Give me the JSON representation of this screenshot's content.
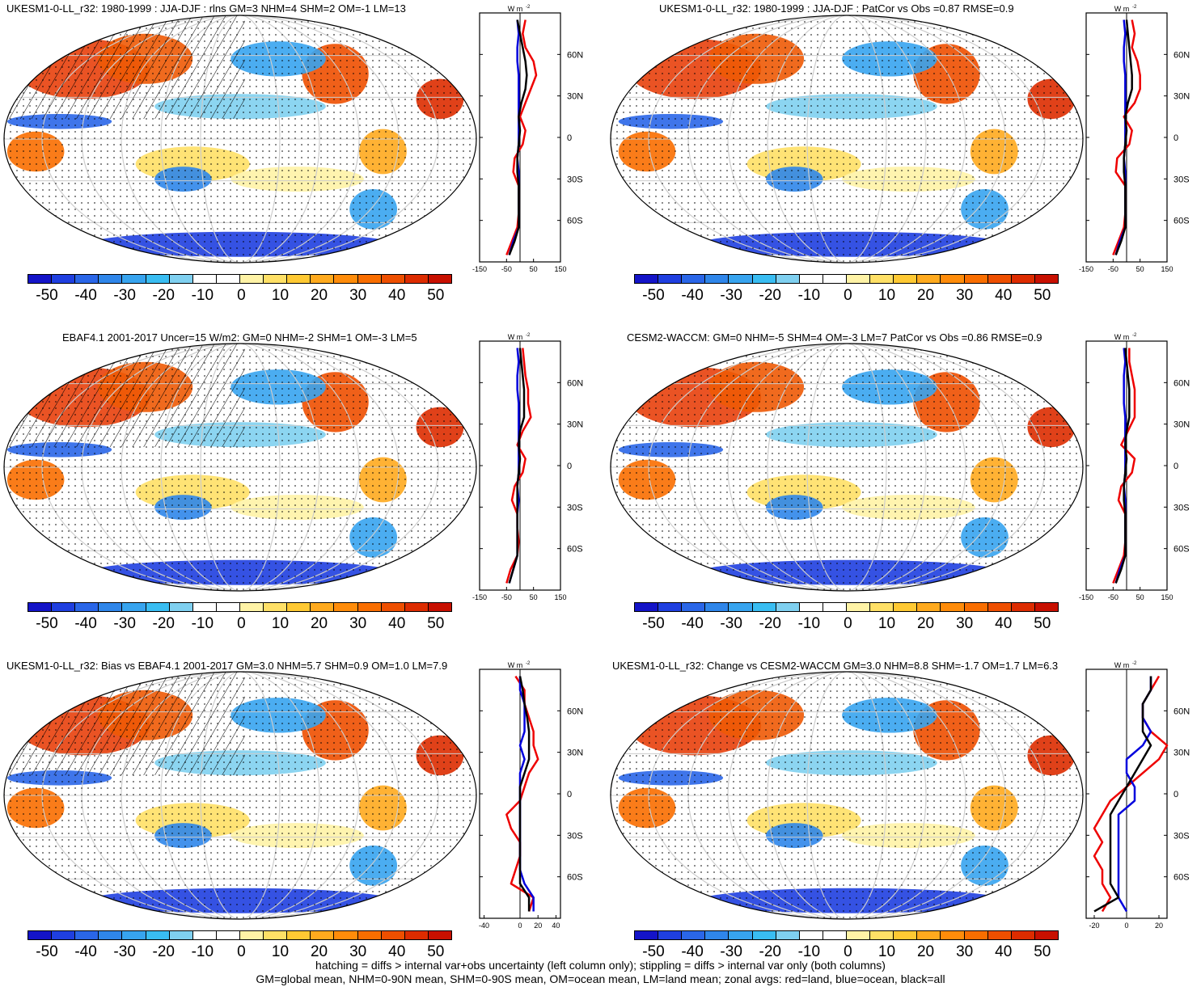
{
  "colors": {
    "land": "#ee0000",
    "ocean": "#0000dd",
    "all": "#000000",
    "colorbar": [
      "#1414c8",
      "#1f3fe0",
      "#2a66e8",
      "#2f86ea",
      "#37a4ef",
      "#39bdf2",
      "#7fd0f0",
      "#ffffff",
      "#ffffff",
      "#fff3a6",
      "#ffe066",
      "#ffc933",
      "#ffaa1e",
      "#ff8c0a",
      "#f96e00",
      "#ee4f00",
      "#dd2c00",
      "#c81000"
    ]
  },
  "colorbar": {
    "labels": [
      "-50",
      "-40",
      "-30",
      "-20",
      "-10",
      "0",
      "10",
      "20",
      "30",
      "40",
      "50"
    ]
  },
  "panels": [
    {
      "title": "UKESM1-0-LL_r32: 1980-1999 : JJA-DJF : rlns GM=3 NHM=4 SHM=2 OM=-1 LM=13",
      "hatched": true,
      "zonal": {
        "unit_label": "W m",
        "unit_exp": "-2",
        "xticks": [
          "-150",
          "-50",
          "50",
          "150"
        ],
        "yticks": [
          "60N",
          "30N",
          "0",
          "30S",
          "60S"
        ]
      }
    },
    {
      "title": "UKESM1-0-LL_r32: 1980-1999 : JJA-DJF : PatCor vs Obs =0.87 RMSE=0.9",
      "hatched": false,
      "zonal": {
        "unit_label": "W m",
        "unit_exp": "-2",
        "xticks": [
          "-150",
          "-50",
          "50",
          "150"
        ],
        "yticks": [
          "60N",
          "30N",
          "0",
          "30S",
          "60S"
        ]
      }
    },
    {
      "title": "EBAF4.1 2001-2017 Uncer=15 W/m2: GM=0 NHM=-2 SHM=1 OM=-3 LM=5",
      "hatched": true,
      "zonal": {
        "unit_label": "W m",
        "unit_exp": "-2",
        "xticks": [
          "-150",
          "-50",
          "50",
          "150"
        ],
        "yticks": [
          "60N",
          "30N",
          "0",
          "30S",
          "60S"
        ]
      }
    },
    {
      "title": "CESM2-WACCM: GM=0 NHM=-5 SHM=4 OM=-3 LM=7 PatCor vs Obs =0.86 RMSE=0.9",
      "hatched": false,
      "zonal": {
        "unit_label": "W m",
        "unit_exp": "-2",
        "xticks": [
          "-150",
          "-50",
          "50",
          "150"
        ],
        "yticks": [
          "60N",
          "30N",
          "0",
          "30S",
          "60S"
        ]
      }
    },
    {
      "title": "UKESM1-0-LL_r32: Bias vs EBAF4.1 2001-2017 GM=3.0 NHM=5.7 SHM=0.9 OM=1.0 LM=7.9",
      "hatched": true,
      "zonal": {
        "unit_label": "W m",
        "unit_exp": "-2",
        "xticks": [
          "-40",
          "0",
          "20",
          "40"
        ],
        "yticks": [
          "60N",
          "30N",
          "0",
          "30S",
          "60S"
        ]
      }
    },
    {
      "title": "UKESM1-0-LL_r32: Change vs CESM2-WACCM GM=3.0 NHM=8.8 SHM=-1.7 OM=1.7 LM=6.3",
      "hatched": false,
      "zonal": {
        "unit_label": "W m",
        "unit_exp": "-2",
        "xticks": [
          "-20",
          "0",
          "20"
        ],
        "yticks": [
          "60N",
          "30N",
          "0",
          "30S",
          "60S"
        ]
      }
    }
  ],
  "chart_data": [
    {
      "type": "line",
      "title": "UKESM1-0-LL_r32: 1980-1999 : JJA-DJF : rlns GM=3 NHM=4 SHM=2 OM=-1 LM=13",
      "ylabel": "",
      "xlim": [
        -150,
        150
      ],
      "ylim": [
        -90,
        90
      ],
      "y": [
        -85,
        -75,
        -65,
        -55,
        -45,
        -35,
        -25,
        -15,
        -5,
        5,
        15,
        25,
        35,
        45,
        55,
        65,
        75,
        85
      ],
      "series": [
        {
          "name": "land",
          "values": [
            -50,
            -30,
            -10,
            -5,
            -5,
            -5,
            -25,
            -20,
            10,
            20,
            0,
            20,
            40,
            60,
            50,
            20,
            10,
            20
          ]
        },
        {
          "name": "ocean",
          "values": [
            -40,
            -25,
            -5,
            -5,
            -5,
            -5,
            -5,
            -10,
            -5,
            -5,
            -5,
            -5,
            -5,
            -5,
            -10,
            -10,
            -5,
            -10
          ]
        },
        {
          "name": "all",
          "values": [
            -40,
            -20,
            -5,
            -5,
            -5,
            -5,
            -10,
            -10,
            -5,
            0,
            -5,
            5,
            20,
            25,
            20,
            10,
            0,
            -10
          ]
        }
      ]
    },
    {
      "type": "line",
      "title": "UKESM1-0-LL_r32: 1980-1999 : JJA-DJF : PatCor vs Obs =0.87 RMSE=0.9",
      "xlim": [
        -150,
        150
      ],
      "ylim": [
        -90,
        90
      ],
      "y": [
        -85,
        -75,
        -65,
        -55,
        -45,
        -35,
        -25,
        -15,
        -5,
        5,
        15,
        25,
        35,
        45,
        55,
        65,
        75,
        85
      ],
      "series": [
        {
          "name": "land",
          "values": [
            -50,
            -30,
            -10,
            -5,
            -5,
            -5,
            -40,
            -35,
            10,
            20,
            -10,
            30,
            50,
            50,
            40,
            20,
            30,
            20
          ]
        },
        {
          "name": "ocean",
          "values": [
            -40,
            -25,
            -5,
            -5,
            -5,
            -5,
            -5,
            -10,
            -5,
            -5,
            -5,
            -5,
            -5,
            -5,
            -10,
            -10,
            -5,
            -10
          ]
        },
        {
          "name": "all",
          "values": [
            -40,
            -20,
            -5,
            -5,
            -5,
            -5,
            -10,
            -10,
            -5,
            0,
            -5,
            5,
            20,
            20,
            15,
            10,
            5,
            0
          ]
        }
      ]
    },
    {
      "type": "line",
      "title": "EBAF4.1 2001-2017 Uncer=15 W/m2: GM=0 NHM=-2 SHM=1 OM=-3 LM=5",
      "xlim": [
        -150,
        150
      ],
      "ylim": [
        -90,
        90
      ],
      "y": [
        -85,
        -75,
        -65,
        -55,
        -45,
        -35,
        -25,
        -15,
        -5,
        5,
        15,
        25,
        35,
        45,
        55,
        65,
        75,
        85
      ],
      "series": [
        {
          "name": "land",
          "values": [
            -50,
            -35,
            -10,
            -5,
            -10,
            -10,
            -30,
            -20,
            10,
            20,
            -10,
            10,
            40,
            30,
            30,
            20,
            15,
            10
          ]
        },
        {
          "name": "ocean",
          "values": [
            -40,
            -25,
            -10,
            -10,
            -10,
            -10,
            -5,
            -10,
            -5,
            -5,
            -5,
            -5,
            -5,
            -5,
            -10,
            -10,
            -5,
            -10
          ]
        },
        {
          "name": "all",
          "values": [
            -40,
            -25,
            -10,
            -10,
            -10,
            -10,
            -10,
            -10,
            -5,
            0,
            -5,
            0,
            15,
            15,
            15,
            10,
            5,
            0
          ]
        }
      ]
    },
    {
      "type": "line",
      "title": "CESM2-WACCM: GM=0 NHM=-5 SHM=4 OM=-3 LM=7 PatCor vs Obs =0.86 RMSE=0.9",
      "xlim": [
        -150,
        150
      ],
      "ylim": [
        -90,
        90
      ],
      "y": [
        -85,
        -75,
        -65,
        -55,
        -45,
        -35,
        -25,
        -15,
        -5,
        5,
        15,
        25,
        35,
        45,
        55,
        65,
        75,
        85
      ],
      "series": [
        {
          "name": "land",
          "values": [
            -50,
            -30,
            -10,
            -5,
            -5,
            -5,
            -30,
            -20,
            20,
            30,
            -20,
            5,
            30,
            30,
            30,
            20,
            10,
            10
          ]
        },
        {
          "name": "ocean",
          "values": [
            -40,
            -25,
            -5,
            -5,
            -5,
            -5,
            -5,
            -10,
            -5,
            -5,
            -5,
            -5,
            -5,
            -10,
            -10,
            -10,
            -5,
            -10
          ]
        },
        {
          "name": "all",
          "values": [
            -40,
            -20,
            -5,
            -5,
            -5,
            -5,
            -10,
            -10,
            -5,
            0,
            -5,
            0,
            10,
            10,
            10,
            5,
            0,
            -5
          ]
        }
      ]
    },
    {
      "type": "line",
      "title": "UKESM1-0-LL_r32: Bias vs EBAF4.1 2001-2017 GM=3.0 NHM=5.7 SHM=0.9 OM=1.0 LM=7.9",
      "xlim": [
        -45,
        45
      ],
      "ylim": [
        -90,
        90
      ],
      "y": [
        -85,
        -75,
        -65,
        -55,
        -45,
        -35,
        -25,
        -15,
        -5,
        5,
        15,
        25,
        35,
        45,
        55,
        65,
        75,
        85
      ],
      "series": [
        {
          "name": "land",
          "values": [
            10,
            15,
            -10,
            -5,
            0,
            0,
            -10,
            -15,
            0,
            5,
            10,
            20,
            15,
            15,
            10,
            5,
            5,
            -5
          ]
        },
        {
          "name": "ocean",
          "values": [
            15,
            15,
            5,
            0,
            0,
            0,
            0,
            0,
            0,
            0,
            0,
            5,
            0,
            5,
            5,
            5,
            0,
            0
          ]
        },
        {
          "name": "all",
          "values": [
            10,
            10,
            0,
            0,
            0,
            0,
            0,
            0,
            0,
            0,
            5,
            10,
            10,
            10,
            8,
            5,
            3,
            0
          ]
        }
      ]
    },
    {
      "type": "line",
      "title": "UKESM1-0-LL_r32: Change vs CESM2-WACCM GM=3.0 NHM=8.8 SHM=-1.7 OM=1.7 LM=6.3",
      "xlim": [
        -25,
        25
      ],
      "ylim": [
        -90,
        90
      ],
      "y": [
        -85,
        -75,
        -65,
        -55,
        -45,
        -35,
        -25,
        -15,
        -5,
        5,
        15,
        25,
        35,
        45,
        55,
        65,
        75,
        85
      ],
      "series": [
        {
          "name": "land",
          "values": [
            -15,
            -10,
            -15,
            -15,
            -20,
            -15,
            -20,
            -15,
            -10,
            0,
            10,
            20,
            25,
            15,
            10,
            10,
            15,
            20
          ]
        },
        {
          "name": "ocean",
          "values": [
            0,
            -5,
            -5,
            -5,
            -5,
            -5,
            -5,
            -5,
            5,
            5,
            0,
            0,
            10,
            15,
            10,
            10,
            15,
            15
          ]
        },
        {
          "name": "all",
          "values": [
            -20,
            -5,
            -10,
            -10,
            -10,
            -10,
            -10,
            -10,
            -5,
            0,
            5,
            10,
            15,
            10,
            10,
            10,
            15,
            15
          ]
        }
      ]
    }
  ],
  "footer": {
    "line1": "hatching = diffs > internal var+obs uncertainty (left column only); stippling = diffs > internal var only (both columns)",
    "line2": "GM=global mean, NHM=0-90N mean, SHM=0-90S mean, OM=ocean mean, LM=land mean; zonal avgs: red=land, blue=ocean, black=all"
  }
}
